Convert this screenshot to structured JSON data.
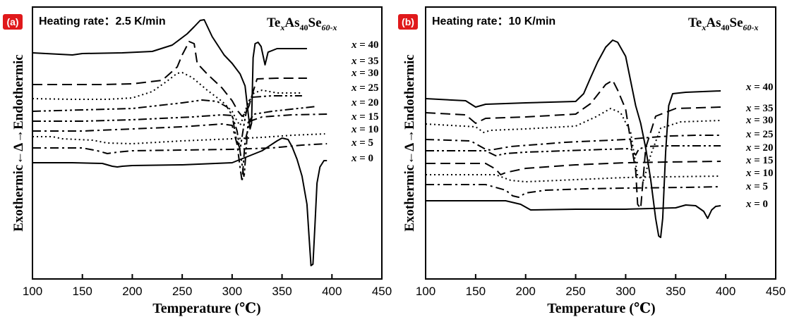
{
  "chart_data": [
    {
      "type": "line",
      "panel_label": "(a)",
      "heating_rate_label": "Heating rate：",
      "heating_rate_value": "2.5 K/min",
      "formula": {
        "base": "Te",
        "s1": "x",
        "mid": "As",
        "s2": "40",
        "end": "Se",
        "s3": "60-x"
      },
      "xlabel": "Temperature (℃)",
      "ylabel": "Exothermic←Δ→Endothermic",
      "xlim": [
        100,
        450
      ],
      "xticks": [
        "100",
        "150",
        "200",
        "250",
        "300",
        "350",
        "400",
        "450"
      ],
      "y_axis_values_shown": false,
      "series": [
        {
          "name": "x = 40",
          "style": "solid",
          "x": [
            100,
            140,
            150,
            190,
            220,
            240,
            255,
            262,
            268,
            272,
            280,
            292,
            300,
            308,
            313,
            316,
            318,
            319.5,
            321,
            323,
            326,
            329,
            333,
            336,
            345,
            375
          ],
          "y": [
            75,
            78,
            76,
            75,
            73,
            64,
            48,
            38,
            29,
            28,
            52,
            78,
            90,
            105,
            122,
            160,
            183,
            175,
            82,
            62,
            60,
            66,
            92,
            74,
            69,
            69
          ]
        },
        {
          "name": "x = 35",
          "style": "dash",
          "x": [
            100,
            170,
            200,
            230,
            245,
            250,
            257,
            262,
            265,
            275,
            290,
            300,
            306,
            310,
            314,
            317,
            320,
            325,
            345,
            375
          ],
          "y": [
            120,
            120,
            119,
            114,
            95,
            78,
            59,
            62,
            90,
            105,
            125,
            143,
            158,
            165,
            160,
            150,
            135,
            112,
            111,
            111
          ]
        },
        {
          "name": "x = 30",
          "style": "dot",
          "x": [
            100,
            140,
            175,
            200,
            220,
            235,
            245,
            250,
            260,
            275,
            290,
            300,
            305,
            308,
            312,
            316,
            322,
            330,
            345,
            370
          ],
          "y": [
            140,
            141,
            141,
            139,
            130,
            115,
            104,
            103,
            110,
            128,
            144,
            158,
            172,
            178,
            163,
            145,
            132,
            128,
            132,
            132
          ]
        },
        {
          "name": "x = 25",
          "style": "dashdotdot",
          "x": [
            100,
            150,
            200,
            250,
            270,
            285,
            295,
            300,
            304,
            308,
            312,
            316,
            320,
            340,
            370
          ],
          "y": [
            158,
            156,
            154,
            146,
            142,
            144,
            152,
            164,
            196,
            212,
            176,
            145,
            138,
            136,
            136
          ]
        },
        {
          "name": "x = 20",
          "style": "dashdotdot",
          "x": [
            100,
            150,
            200,
            260,
            290,
            300,
            305,
            310,
            312,
            316,
            322,
            340,
            385
          ],
          "y": [
            172,
            172,
            170,
            166,
            163,
            164,
            186,
            234,
            252,
            174,
            162,
            158,
            151
          ]
        },
        {
          "name": "x = 15",
          "style": "dashdot",
          "x": [
            100,
            150,
            200,
            250,
            290,
            300,
            305,
            308,
            310,
            313,
            318,
            330,
            360,
            395
          ],
          "y": [
            186,
            186,
            183,
            180,
            176,
            178,
            205,
            238,
            258,
            200,
            172,
            166,
            163,
            162
          ]
        },
        {
          "name": "x = 10",
          "style": "dot",
          "x": [
            100,
            120,
            130,
            160,
            175,
            200,
            250,
            300,
            330,
            360,
            393
          ],
          "y": [
            194,
            194,
            197,
            199,
            203,
            204,
            200,
            197,
            195,
            192,
            190
          ]
        },
        {
          "name": "x = 5",
          "style": "dashdot",
          "x": [
            100,
            130,
            150,
            165,
            175,
            185,
            200,
            250,
            300,
            340,
            370,
            395
          ],
          "y": [
            210,
            210,
            210,
            214,
            218,
            216,
            214,
            213,
            212,
            210,
            206,
            204
          ]
        },
        {
          "name": "x = 0",
          "style": "solid",
          "x": [
            100,
            140,
            170,
            180,
            185,
            190,
            200,
            250,
            300,
            330,
            345,
            350,
            356,
            360,
            365,
            370,
            375,
            377,
            379,
            381,
            383,
            385,
            388,
            392,
            395
          ],
          "y": [
            231,
            231,
            232,
            236,
            237,
            236,
            235,
            234,
            231,
            214,
            200,
            196,
            198,
            208,
            226,
            250,
            290,
            335,
            377,
            375,
            320,
            260,
            237,
            228,
            228
          ]
        }
      ]
    },
    {
      "type": "line",
      "panel_label": "(b)",
      "heating_rate_label": "Heating rate：",
      "heating_rate_value": "10 K/min",
      "formula": {
        "base": "Te",
        "s1": "x",
        "mid": "As",
        "s2": "40",
        "end": "Se",
        "s3": "60-x"
      },
      "xlabel": "Temperature (℃)",
      "ylabel": "Exothermic←Δ→Endothermic",
      "xlim": [
        100,
        450
      ],
      "xticks": [
        "100",
        "150",
        "200",
        "250",
        "300",
        "350",
        "400",
        "450"
      ],
      "y_axis_values_shown": false,
      "series": [
        {
          "name": "x = 40",
          "style": "solid",
          "x": [
            100,
            140,
            150,
            160,
            200,
            250,
            258,
            265,
            272,
            280,
            287,
            292,
            300,
            305,
            310,
            315,
            320,
            325,
            330,
            333,
            335,
            337,
            340,
            343,
            347,
            360,
            395
          ],
          "y": [
            140,
            143,
            152,
            148,
            146,
            144,
            133,
            110,
            88,
            67,
            57,
            60,
            80,
            115,
            150,
            175,
            210,
            255,
            310,
            335,
            337,
            310,
            215,
            150,
            133,
            131,
            129
          ]
        },
        {
          "name": "x = 35",
          "style": "dash",
          "x": [
            100,
            140,
            150,
            160,
            200,
            250,
            265,
            280,
            287,
            292,
            300,
            305,
            310,
            312,
            315,
            320,
            330,
            350,
            395
          ],
          "y": [
            160,
            163,
            175,
            168,
            166,
            162,
            147,
            120,
            114,
            128,
            155,
            200,
            242,
            290,
            296,
            210,
            165,
            154,
            152
          ]
        },
        {
          "name": "x = 30",
          "style": "dot",
          "x": [
            100,
            150,
            158,
            165,
            200,
            250,
            270,
            285,
            295,
            305,
            312,
            318,
            325,
            335,
            355,
            395
          ],
          "y": [
            176,
            180,
            188,
            185,
            183,
            179,
            166,
            154,
            160,
            188,
            250,
            256,
            220,
            182,
            173,
            171
          ]
        },
        {
          "name": "x = 25",
          "style": "dashdot",
          "x": [
            100,
            145,
            160,
            165,
            185,
            240,
            300,
            325,
            345,
            370,
            395
          ],
          "y": [
            198,
            200,
            212,
            213,
            208,
            202,
            198,
            195,
            193,
            192,
            192
          ]
        },
        {
          "name": "x = 20",
          "style": "dashdotdot",
          "x": [
            100,
            160,
            170,
            180,
            200,
            280,
            305,
            310,
            313,
            320,
            340,
            395
          ],
          "y": [
            214,
            214,
            221,
            218,
            216,
            212,
            211,
            220,
            212,
            208,
            207,
            207
          ]
        },
        {
          "name": "x = 15",
          "style": "dash",
          "x": [
            100,
            160,
            170,
            175,
            180,
            200,
            250,
            300,
            340,
            395
          ],
          "y": [
            232,
            232,
            240,
            248,
            245,
            239,
            234,
            231,
            230,
            229
          ]
        },
        {
          "name": "x = 10",
          "style": "dot",
          "x": [
            100,
            170,
            185,
            200,
            250,
            300,
            340,
            395
          ],
          "y": [
            248,
            248,
            256,
            258,
            255,
            252,
            251,
            250
          ]
        },
        {
          "name": "x = 5",
          "style": "dashdot",
          "x": [
            100,
            160,
            180,
            187,
            193,
            200,
            220,
            260,
            300,
            360,
            395
          ],
          "y": [
            262,
            262,
            270,
            278,
            280,
            274,
            270,
            268,
            267,
            266,
            265
          ]
        },
        {
          "name": "x = 0",
          "style": "solid",
          "x": [
            100,
            180,
            195,
            205,
            250,
            300,
            350,
            360,
            370,
            378,
            382,
            386,
            390,
            395
          ],
          "y": [
            285,
            285,
            290,
            298,
            297,
            297,
            295,
            291,
            292,
            300,
            310,
            298,
            293,
            292
          ]
        }
      ]
    }
  ]
}
